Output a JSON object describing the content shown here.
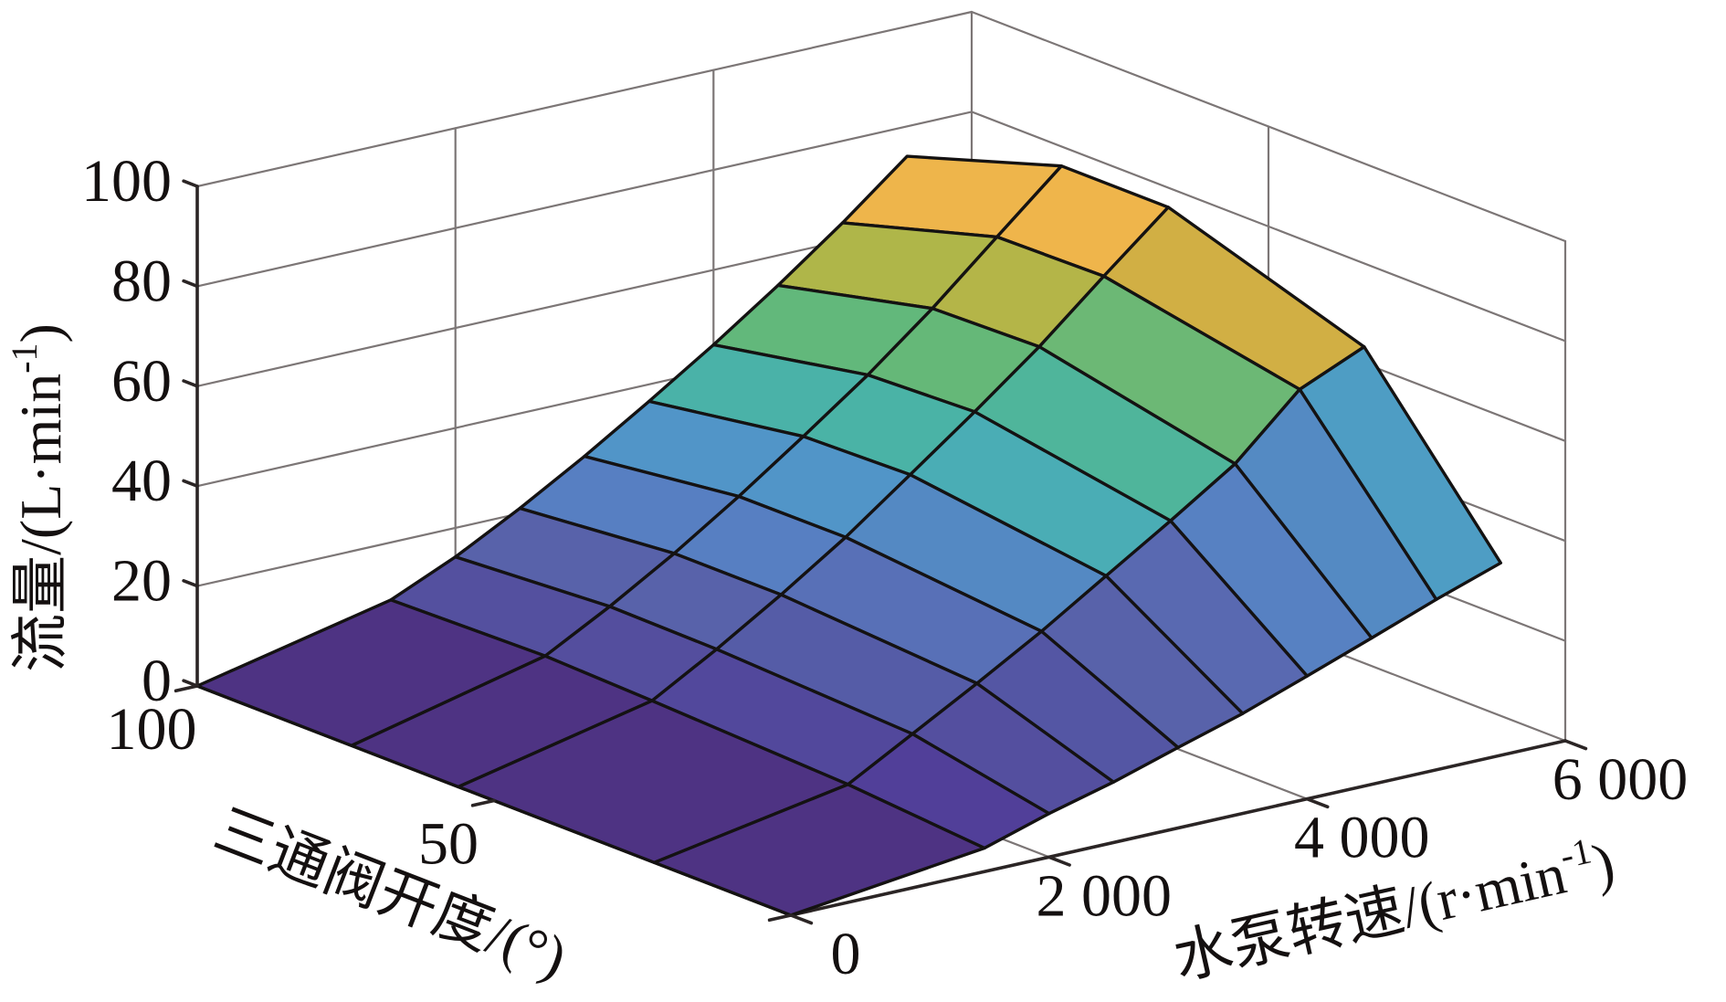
{
  "labels": {
    "z_title": {
      "main": "流量/(L·min",
      "sup": "-1",
      "end": ")"
    },
    "y_title": {
      "main": "三通阀开度/(°)"
    },
    "x_title": {
      "main": "水泵转速/(r·min",
      "sup": "-1",
      "end": ")"
    }
  },
  "chart_data": {
    "type": "surface",
    "title": "",
    "xlabel": "水泵转速/(r·min⁻¹)",
    "ylabel": "三通阀开度/(°)",
    "zlabel": "流量/(L·min⁻¹)",
    "x_axis": {
      "unit": "r·min⁻¹",
      "values": [
        0,
        1500,
        2000,
        2500,
        3000,
        3500,
        4000,
        4500,
        5000,
        5500
      ],
      "lim": [
        0,
        6000
      ],
      "ticks": [
        0,
        2000,
        4000,
        6000
      ],
      "tick_labels": [
        "0",
        "2 000",
        "4 000",
        "6 000"
      ]
    },
    "y_axis": {
      "unit": "°",
      "values": [
        0,
        23,
        56,
        74,
        100
      ],
      "lim": [
        0,
        100
      ],
      "ticks": [
        0,
        50,
        100
      ],
      "tick_labels": [
        "",
        "50",
        "100"
      ]
    },
    "z_axis": {
      "unit": "L·min⁻¹",
      "lim": [
        0,
        100
      ],
      "ticks": [
        0,
        20,
        40,
        60,
        80,
        100
      ],
      "tick_labels": [
        "0",
        "20",
        "40",
        "60",
        "80",
        "100"
      ]
    },
    "z_values": [
      [
        0,
        4.7,
        8.7,
        12.1,
        16.1,
        20.0,
        24.6,
        29.3,
        34.1,
        38.5
      ],
      [
        0,
        6.9,
        14.1,
        21.3,
        28.8,
        37.0,
        45.1,
        53.6,
        65.6,
        71.2
      ],
      [
        0,
        8.5,
        15.9,
        23.9,
        32.5,
        42.1,
        51.8,
        61.9,
        73.1,
        84.0
      ],
      [
        0,
        9.2,
        16.2,
        23.9,
        32.4,
        41.5,
        50.9,
        61.3,
        72.7,
        84.0
      ],
      [
        0,
        8.5,
        14.2,
        21.0,
        28.5,
        36.6,
        45.0,
        54.0,
        63.6,
        74.0
      ]
    ],
    "z_values_layout": "rows = y_axis.values (valve opening), columns = x_axis.values (pump speed)",
    "colormap": "parula",
    "colormap_stops": [
      {
        "z": 0,
        "color": "#4E3383"
      },
      {
        "z": 5,
        "color": "#51409A"
      },
      {
        "z": 9,
        "color": "#54509F"
      },
      {
        "z": 13,
        "color": "#5458A5"
      },
      {
        "z": 16,
        "color": "#5862AA"
      },
      {
        "z": 20,
        "color": "#5969B1"
      },
      {
        "z": 24,
        "color": "#5780C2"
      },
      {
        "z": 29,
        "color": "#5489C3"
      },
      {
        "z": 33,
        "color": "#5097C9"
      },
      {
        "z": 37,
        "color": "#4AADB5"
      },
      {
        "z": 42,
        "color": "#4AB3A6"
      },
      {
        "z": 46,
        "color": "#50B598"
      },
      {
        "z": 51,
        "color": "#62B87A"
      },
      {
        "z": 55,
        "color": "#72B872"
      },
      {
        "z": 61,
        "color": "#ADB649"
      },
      {
        "z": 66,
        "color": "#D4AE44"
      },
      {
        "z": 73,
        "color": "#EFB54B"
      },
      {
        "z": 85,
        "color": "#F4C24E"
      }
    ],
    "shading": "faceted",
    "grid": true,
    "colors": {
      "edge": "#141212",
      "grid": "#7c7676",
      "axis": "#2b2525",
      "text": "#141010",
      "background": "#ffffff"
    }
  }
}
